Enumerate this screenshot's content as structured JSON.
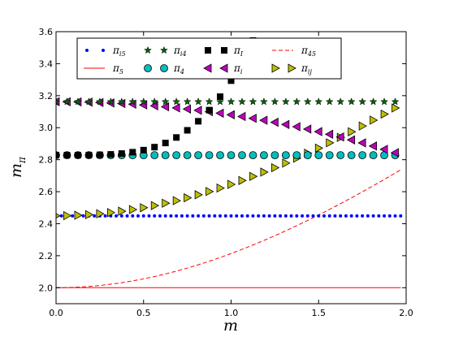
{
  "chart_data": {
    "type": "scatter",
    "xlabel": "m",
    "ylabel": "m",
    "ylabel_sub": "π",
    "xlim": [
      0.0,
      2.0
    ],
    "ylim": [
      1.9,
      3.6
    ],
    "x_ticks": [
      "0.0",
      "0.5",
      "1.0",
      "1.5",
      "2.0"
    ],
    "y_ticks": [
      "2.0",
      "2.2",
      "2.4",
      "2.6",
      "2.8",
      "3.0",
      "3.2",
      "3.4",
      "3.6"
    ],
    "grid": false,
    "legend_position": "top",
    "legend": [
      {
        "sym": "π",
        "sub": "i5"
      },
      {
        "sym": "π",
        "sub": "i4"
      },
      {
        "sym": "π",
        "sub": "I"
      },
      {
        "sym": "π",
        "sub": "45"
      },
      {
        "sym": "π",
        "sub": "5"
      },
      {
        "sym": "π",
        "sub": "4"
      },
      {
        "sym": "π",
        "sub": "i"
      },
      {
        "sym": "π",
        "sub": "ij"
      }
    ],
    "x_step": 0.0625,
    "x_count": 32,
    "x_dense_step": 0.03125,
    "x_dense_count": 64,
    "series": [
      {
        "name": "π_i5",
        "marker": "dot",
        "color": "#0000ff",
        "dense": true,
        "formula": "constant",
        "value": 2.449
      },
      {
        "name": "π_i4",
        "marker": "star",
        "color": "#006400",
        "formula": "constant",
        "value": 3.162
      },
      {
        "name": "π_I",
        "marker": "square",
        "color": "#000000",
        "formula": "sqrt(8 + 2.85 m^4)",
        "coeff": 2.85
      },
      {
        "name": "π_45",
        "marker": "dashed",
        "color": "#ff0000",
        "formula": "sqrt(4 + 0.9 m^2)",
        "coeff": 0.9
      },
      {
        "name": "π_5",
        "marker": "solid",
        "color": "#ff0000",
        "formula": "constant",
        "value": 2.0
      },
      {
        "name": "π_4",
        "marker": "circle",
        "color": "#00bfbf",
        "formula": "constant",
        "value": 2.828
      },
      {
        "name": "π_i",
        "marker": "triangle-left",
        "color": "#bf00bf",
        "formula": "sqrt(10 - 0.51 m^2)",
        "coeff": 0.51
      },
      {
        "name": "π_ij",
        "marker": "triangle-right",
        "color": "#bfbf00",
        "formula": "sqrt(6 + m^2)",
        "coeff": 1.0
      }
    ]
  }
}
